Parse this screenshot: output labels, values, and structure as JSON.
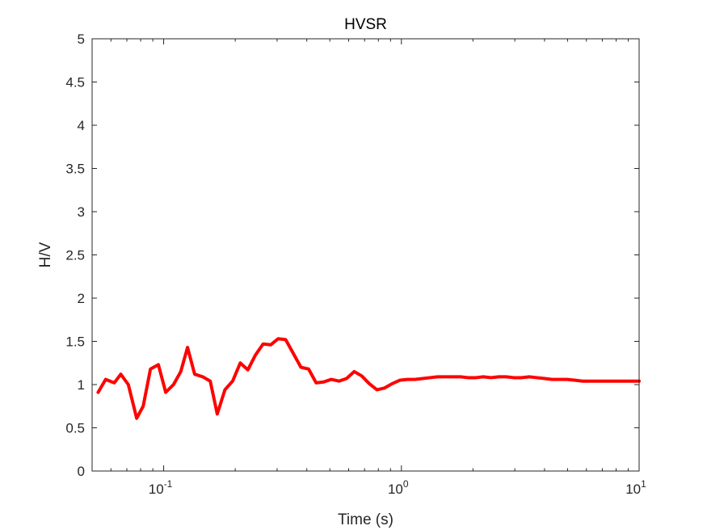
{
  "chart_data": {
    "type": "line",
    "title": "HVSR",
    "xlabel": "Time (s)",
    "ylabel": "H/V",
    "xscale": "log",
    "xlim": [
      0.05,
      10
    ],
    "ylim": [
      0,
      5
    ],
    "x_ticks": [
      {
        "value": 0.1,
        "base": "10",
        "exp": "-1"
      },
      {
        "value": 1,
        "base": "10",
        "exp": "0"
      },
      {
        "value": 10,
        "base": "10",
        "exp": "1"
      }
    ],
    "y_ticks": [
      "0",
      "0.5",
      "1",
      "1.5",
      "2",
      "2.5",
      "3",
      "3.5",
      "4",
      "4.5",
      "5"
    ],
    "grid": false,
    "color": "#ff0000",
    "series": [
      {
        "x": [
          0.053,
          0.057,
          0.062,
          0.066,
          0.071,
          0.077,
          0.082,
          0.088,
          0.095,
          0.102,
          0.11,
          0.118,
          0.126,
          0.135,
          0.146,
          0.157,
          0.168,
          0.181,
          0.195,
          0.21,
          0.226,
          0.243,
          0.262,
          0.282,
          0.303,
          0.326,
          0.351,
          0.378,
          0.407,
          0.438,
          0.471,
          0.507,
          0.546,
          0.588,
          0.633,
          0.681,
          0.733,
          0.789,
          0.849,
          0.914,
          0.984,
          1.06,
          1.14,
          1.23,
          1.32,
          1.42,
          1.53,
          1.65,
          1.77,
          1.91,
          2.06,
          2.21,
          2.38,
          2.57,
          2.76,
          2.97,
          3.2,
          3.45,
          3.71,
          4.0,
          4.3,
          4.63,
          4.99,
          5.37,
          5.78,
          6.22,
          6.7,
          7.21,
          7.77,
          8.36,
          9.0,
          9.7,
          10.0
        ],
        "y": [
          0.91,
          1.06,
          1.02,
          1.12,
          1.0,
          0.61,
          0.75,
          1.18,
          1.23,
          0.91,
          1.0,
          1.15,
          1.43,
          1.12,
          1.09,
          1.04,
          0.66,
          0.94,
          1.04,
          1.25,
          1.17,
          1.34,
          1.47,
          1.46,
          1.53,
          1.52,
          1.36,
          1.2,
          1.18,
          1.02,
          1.03,
          1.06,
          1.04,
          1.07,
          1.15,
          1.1,
          1.01,
          0.94,
          0.96,
          1.01,
          1.05,
          1.06,
          1.06,
          1.07,
          1.08,
          1.09,
          1.09,
          1.09,
          1.09,
          1.08,
          1.08,
          1.09,
          1.08,
          1.09,
          1.09,
          1.08,
          1.08,
          1.09,
          1.08,
          1.07,
          1.06,
          1.06,
          1.06,
          1.05,
          1.04,
          1.04,
          1.04,
          1.04,
          1.04,
          1.04,
          1.04,
          1.04,
          1.04
        ]
      }
    ]
  }
}
